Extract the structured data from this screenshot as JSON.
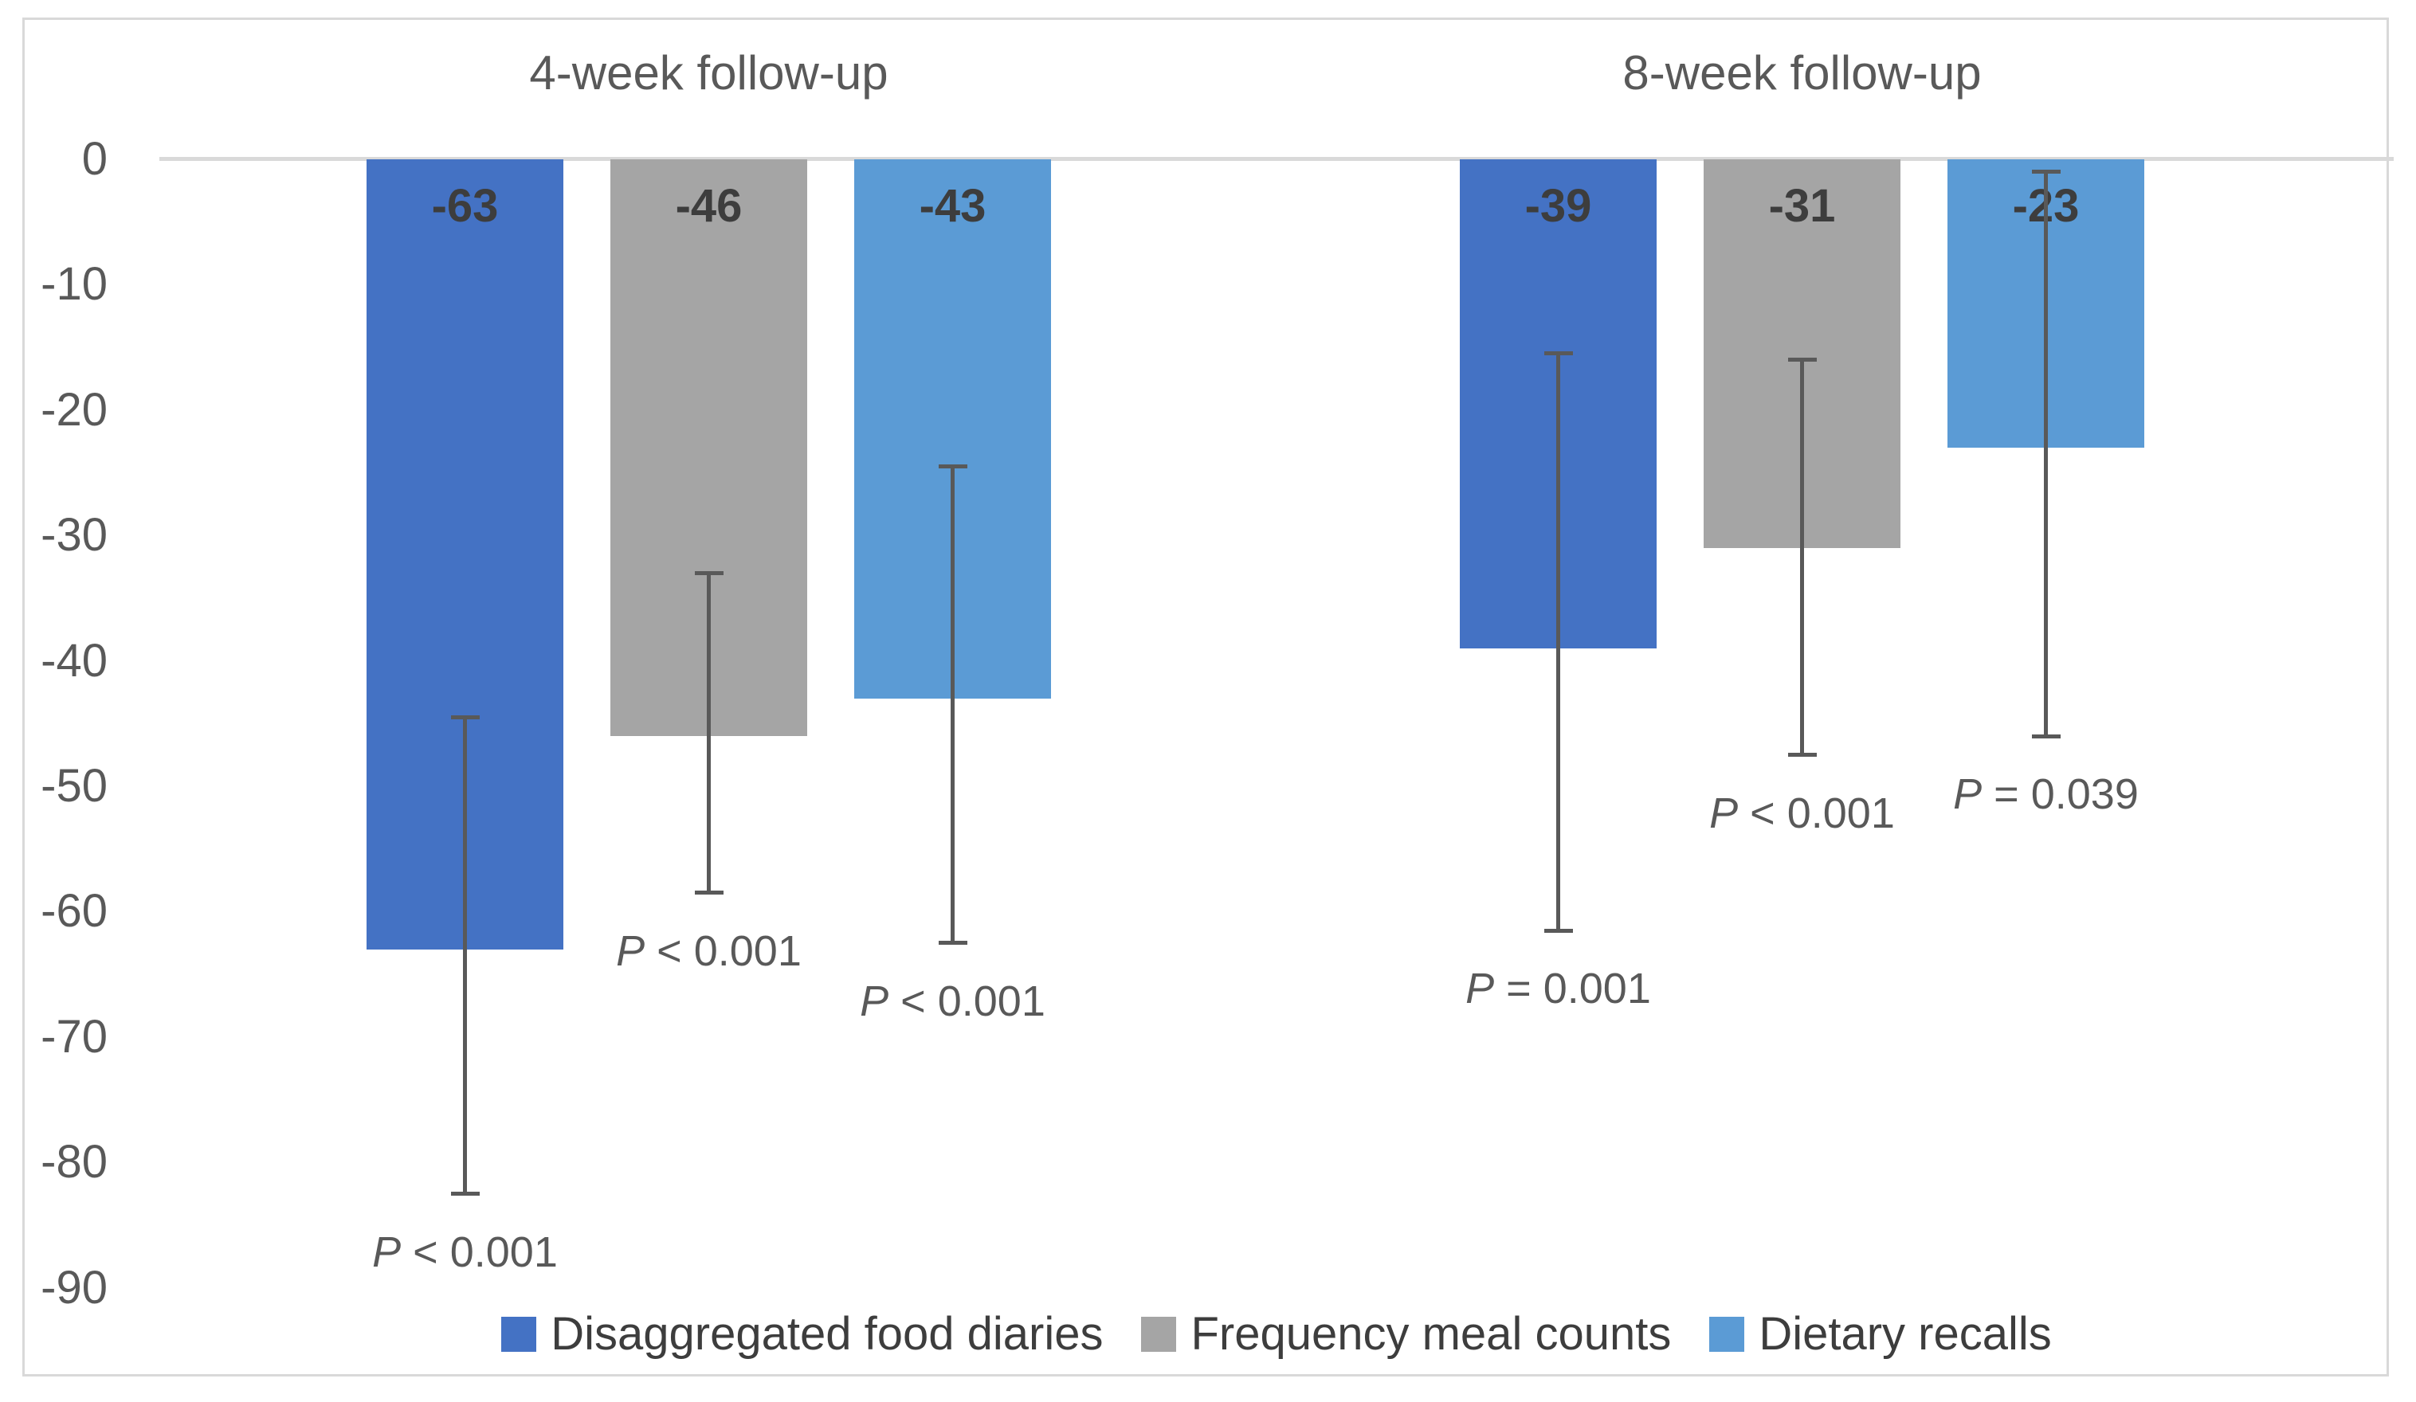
{
  "figure": {
    "background": "#FFFFFF",
    "border_color": "#D9D9D9"
  },
  "chart_data": {
    "type": "bar",
    "title": "",
    "xlabel": "",
    "ylabel": "",
    "y_axis": {
      "ticks": [
        0,
        -10,
        -20,
        -30,
        -40,
        -50,
        -60,
        -70,
        -80,
        -90
      ],
      "tick_labels": [
        "0",
        "-10",
        "-20",
        "-30",
        "-40",
        "-50",
        "-60",
        "-70",
        "-80",
        "-90"
      ],
      "range": [
        0,
        -95
      ],
      "grid": "zero-line-only"
    },
    "groups": [
      {
        "label": "4-week follow-up",
        "bars": [
          {
            "series": "Disaggregated food diaries",
            "value": -63,
            "data_label": "-63",
            "p_value": "P < 0.001",
            "error_bar": {
              "upper": -44.5,
              "lower": -82.5
            }
          },
          {
            "series": "Frequency meal counts",
            "value": -46,
            "data_label": "-46",
            "p_value": "P < 0.001",
            "error_bar": {
              "upper": -33,
              "lower": -58.5
            }
          },
          {
            "series": "Dietary recalls",
            "value": -43,
            "data_label": "-43",
            "p_value": "P < 0.001",
            "error_bar": {
              "upper": -24.5,
              "lower": -62.5
            }
          }
        ]
      },
      {
        "label": "8-week follow-up",
        "bars": [
          {
            "series": "Disaggregated food diaries",
            "value": -39,
            "data_label": "-39",
            "p_value": "P = 0.001",
            "error_bar": {
              "upper": -15.5,
              "lower": -61.5
            }
          },
          {
            "series": "Frequency meal counts",
            "value": -31,
            "data_label": "-31",
            "p_value": "P < 0.001",
            "error_bar": {
              "upper": -16,
              "lower": -47.5
            }
          },
          {
            "series": "Dietary recalls",
            "value": -23,
            "data_label": "-23",
            "p_value": "P = 0.039",
            "error_bar": {
              "upper": -1,
              "lower": -46
            }
          }
        ]
      }
    ],
    "legend": {
      "position": "bottom-center",
      "items": [
        {
          "label": "Disaggregated food diaries",
          "color": "#4472C4"
        },
        {
          "label": "Frequency meal counts",
          "color": "#A5A5A5"
        },
        {
          "label": "Dietary recalls",
          "color": "#5B9BD5"
        }
      ]
    },
    "colors": {
      "error_bar": "#595959",
      "data_label": "#3D3D3D",
      "axis_text": "#595959",
      "group_title": "#595959",
      "p_value_text": "#595959",
      "zero_line": "#D9D9D9",
      "legend_text": "#3D3D3D"
    }
  }
}
